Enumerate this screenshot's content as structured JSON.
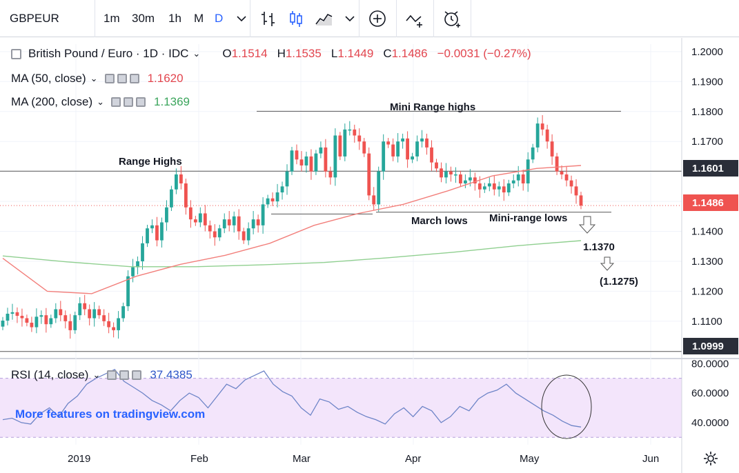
{
  "toolbar": {
    "symbol": "GBPEUR",
    "intervals": [
      {
        "label": "1m",
        "active": false
      },
      {
        "label": "30m",
        "active": false
      },
      {
        "label": "1h",
        "active": false
      },
      {
        "label": "M",
        "active": false
      },
      {
        "label": "D",
        "active": true
      }
    ],
    "icons": [
      "chevron-down-icon",
      "bar-chart-icon",
      "candles-icon",
      "area-chart-icon",
      "chevron-down-icon",
      "add-indicator-icon",
      "compare-icon",
      "alert-icon"
    ]
  },
  "legend": {
    "title": "British Pound / Euro · 1D · IDC",
    "open_label": "O",
    "open": "1.1514",
    "high_label": "H",
    "high": "1.1535",
    "low_label": "L",
    "low": "1.1449",
    "close_label": "C",
    "close": "1.1486",
    "change": "−0.0031 (−0.27%)",
    "ma50_label": "MA (50, close)",
    "ma50_value": "1.1620",
    "ma200_label": "MA (200, close)",
    "ma200_value": "1.1369",
    "rsi_label": "RSI (14, close)",
    "rsi_value": "37.4385"
  },
  "colors": {
    "up": "#26a69a",
    "down": "#ef5350",
    "ma50": "#f27f7b",
    "ma200": "#8fcf8f",
    "rsi": "#6d84c7",
    "rsi_band": "#f3e5fb",
    "accent": "#2962ff"
  },
  "annotations": {
    "range_highs": "Range Highs",
    "mini_range_highs": "Mini Range highs",
    "march_lows": "March lows",
    "mini_range_lows": "Mini-range lows",
    "target1": "1.1370",
    "target2": "(1.1275)"
  },
  "price_labels": {
    "level_high": "1.1601",
    "last": "1.1486",
    "level_low": "1.0999"
  },
  "watermark": "More features on tradingview.com",
  "chart_data": {
    "type": "line",
    "title": "British Pound / Euro · 1D · IDC",
    "y_axis_ticks": [
      "1.2000",
      "1.1900",
      "1.1800",
      "1.1700",
      "1.1600",
      "1.1500",
      "1.1400",
      "1.1300",
      "1.1200",
      "1.1100"
    ],
    "x_axis_ticks": [
      "2019",
      "Feb",
      "Mar",
      "Apr",
      "May",
      "Jun"
    ],
    "ylim": [
      1.098,
      1.2025
    ],
    "horizontal_levels": [
      1.1601,
      1.0999,
      1.1801
    ],
    "series": [
      {
        "name": "GBPEUR close",
        "values": [
          1.1102,
          1.1125,
          1.113,
          1.1118,
          1.111,
          1.1095,
          1.108,
          1.1115,
          1.112,
          1.109,
          1.111,
          1.114,
          1.112,
          1.11,
          1.107,
          1.112,
          1.116,
          1.114,
          1.111,
          1.114,
          1.112,
          1.11,
          1.108,
          1.107,
          1.111,
          1.115,
          1.125,
          1.128,
          1.13,
          1.136,
          1.141,
          1.142,
          1.137,
          1.143,
          1.148,
          1.154,
          1.159,
          1.156,
          1.148,
          1.144,
          1.143,
          1.146,
          1.142,
          1.14,
          1.138,
          1.141,
          1.144,
          1.142,
          1.145,
          1.14,
          1.137,
          1.141,
          1.144,
          1.142,
          1.149,
          1.151,
          1.15,
          1.153,
          1.155,
          1.16,
          1.167,
          1.164,
          1.162,
          1.165,
          1.16,
          1.166,
          1.168,
          1.16,
          1.158,
          1.172,
          1.165,
          1.174,
          1.174,
          1.172,
          1.17,
          1.166,
          1.152,
          1.149,
          1.16,
          1.17,
          1.169,
          1.165,
          1.17,
          1.171,
          1.164,
          1.165,
          1.17,
          1.171,
          1.168,
          1.163,
          1.161,
          1.158,
          1.16,
          1.159,
          1.159,
          1.156,
          1.157,
          1.158,
          1.156,
          1.154,
          1.155,
          1.156,
          1.154,
          1.155,
          1.153,
          1.156,
          1.157,
          1.159,
          1.156,
          1.164,
          1.168,
          1.176,
          1.174,
          1.17,
          1.165,
          1.16,
          1.159,
          1.157,
          1.155,
          1.152,
          1.1486
        ]
      },
      {
        "name": "MA (50, close)",
        "values": [
          1.131,
          1.12,
          1.1192,
          1.125,
          1.129,
          1.132,
          1.136,
          1.142,
          1.146,
          1.149,
          1.1535,
          1.1585,
          1.161,
          1.162
        ]
      },
      {
        "name": "MA (200, close)",
        "values": [
          1.1318,
          1.1298,
          1.1282,
          1.1282,
          1.1288,
          1.1296,
          1.1312,
          1.133,
          1.1352,
          1.1369
        ]
      },
      {
        "name": "RSI (14, close)",
        "values": [
          42,
          43,
          40,
          39,
          46,
          50,
          44,
          53,
          58,
          66,
          70,
          73,
          76,
          68,
          64,
          60,
          55,
          52,
          48,
          55,
          60,
          57,
          50,
          58,
          66,
          63,
          69,
          72,
          75,
          66,
          61,
          58,
          50,
          45,
          56,
          54,
          49,
          51,
          47,
          44,
          42,
          39,
          46,
          50,
          44,
          51,
          48,
          40,
          44,
          51,
          48,
          56,
          60,
          62,
          66,
          60,
          56,
          52,
          48,
          45,
          41,
          38,
          37
        ]
      }
    ],
    "rsi_axis_ticks": [
      "80.0000",
      "60.0000",
      "40.0000"
    ],
    "rsi_ylim": [
      25,
      82
    ],
    "rsi_band": [
      30,
      70
    ]
  }
}
